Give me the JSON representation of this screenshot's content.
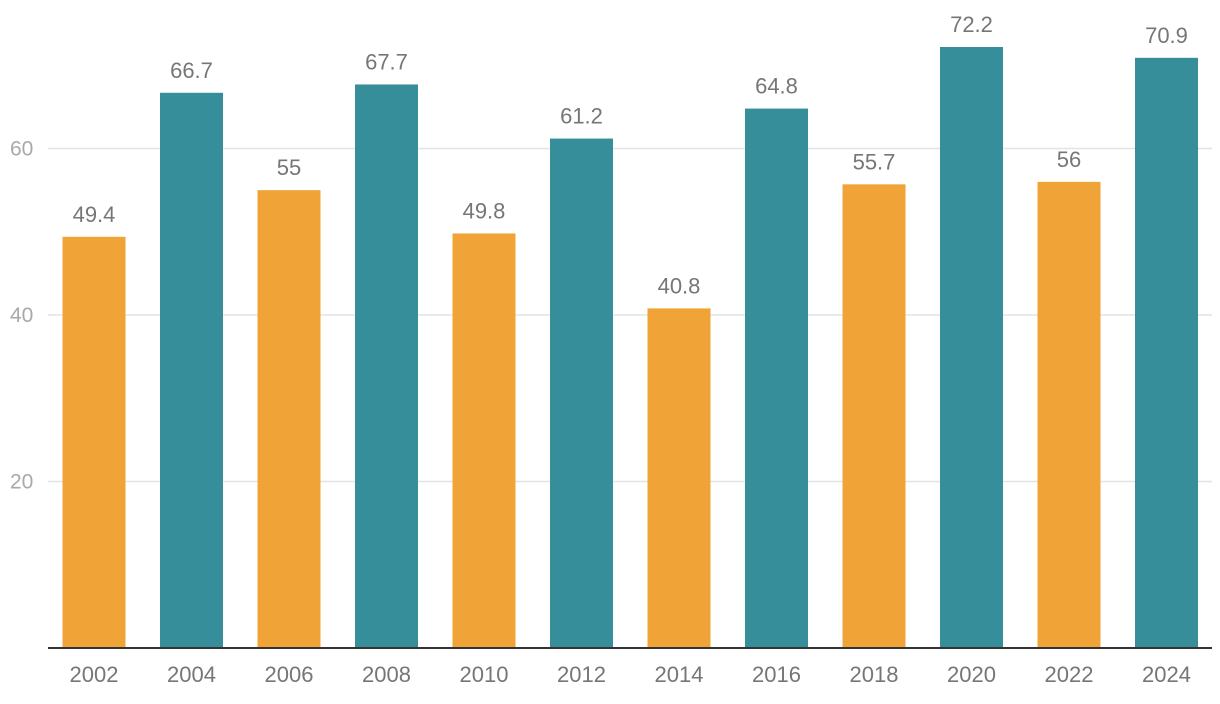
{
  "chart_data": {
    "type": "bar",
    "title": "",
    "xlabel": "",
    "ylabel": "",
    "categories": [
      "2002",
      "2004",
      "2006",
      "2008",
      "2010",
      "2012",
      "2014",
      "2016",
      "2018",
      "2020",
      "2022",
      "2024"
    ],
    "values": [
      49.4,
      66.7,
      55,
      67.7,
      49.8,
      61.2,
      40.8,
      64.8,
      55.7,
      72.2,
      56,
      70.9
    ],
    "data_labels": [
      "49.4",
      "66.7",
      "55",
      "67.7",
      "49.8",
      "61.2",
      "40.8",
      "64.8",
      "55.7",
      "72.2",
      "56",
      "70.9"
    ],
    "bar_colors": [
      "#f0a336",
      "#358e99",
      "#f0a336",
      "#358e99",
      "#f0a336",
      "#358e99",
      "#f0a336",
      "#358e99",
      "#f0a336",
      "#358e99",
      "#f0a336",
      "#358e99"
    ],
    "y_ticks": [
      20,
      40,
      60
    ],
    "y_tick_labels": [
      "20",
      "40",
      "60"
    ],
    "ylim": [
      0,
      72.2
    ],
    "grid": true,
    "legend": "none"
  }
}
